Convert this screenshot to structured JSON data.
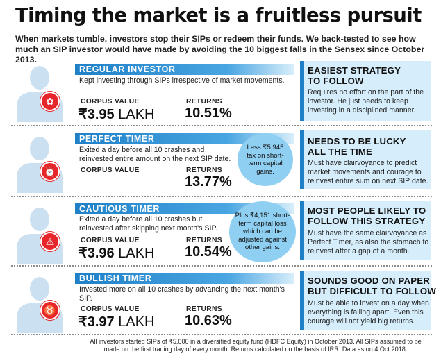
{
  "headline": "Timing the market is a fruitless pursuit",
  "intro": "When markets tumble, investors stop their SIPs or redeem their funds. We back-tested to see how much an SIP investor would have made by avoiding the 10 biggest falls in the Sensex since October 2013.",
  "labels": {
    "corpus": "CORPUS VALUE",
    "returns": "RETURNS"
  },
  "colors": {
    "accent": "#1f80c8",
    "badge": "#e6262a",
    "panel": "#d6edfb",
    "bubble": "#8fcff2"
  },
  "investors": [
    {
      "title": "REGULAR INVESTOR",
      "description": "Kept investing through SIPs irrespective of market movements.",
      "corpus_symbol": "₹",
      "corpus_amount": "3.95",
      "corpus_unit": "LAKH",
      "returns": "10.51%",
      "icon": "rose-icon",
      "panel_title": "EASIEST STRATEGY\nTO FOLLOW",
      "panel_text": "Requires no effort on the part of the investor. He just needs to keep investing in a disciplined manner."
    },
    {
      "title": "PERFECT TIMER",
      "description": "Exited a day before all 10 crashes and reinvested entire amount on the next SIP date.",
      "returns": "13.77%",
      "bubble": "Less ₹5,945 tax on short-term capital gains.",
      "icon": "alarm-clock-icon",
      "panel_title": "NEEDS TO BE LUCKY\nALL THE TIME",
      "panel_text": "Must have clairvoyance to predict market movements and courage to reinvest entire sum on next SIP date."
    },
    {
      "title": "CAUTIOUS TIMER",
      "description": "Exited a day before all 10 crashes but reinvested after skipping next month's SIP.",
      "corpus_symbol": "₹",
      "corpus_amount": "3.96",
      "corpus_unit": "LAKH",
      "returns": "10.54%",
      "bubble": "Plus ₹4,151 short-term capital loss which can be adjusted against other gains.",
      "icon": "warning-icon",
      "panel_title": "MOST PEOPLE LIKELY TO\nFOLLOW THIS STRATEGY",
      "panel_text": "Must have the same clairvoyance as Perfect Timer, as also the stomach to reinvest after a gap of a month."
    },
    {
      "title": "BULLISH TIMER",
      "description": "Invested more on all 10 crashes by advancing the next month's SIP.",
      "corpus_symbol": "₹",
      "corpus_amount": "3.97",
      "corpus_unit": "LAKH",
      "returns": "10.63%",
      "icon": "bull-icon",
      "panel_title": "SOUNDS GOOD ON PAPER\nBUT DIFFICULT TO FOLLOW",
      "panel_text": "Must be able to invest on a day when everything is falling apart. Even this courage will not yield big returns."
    }
  ],
  "footnote": "All investors started SIPs of ₹5,000 in a diversified equity fund (HDFC Equity) in October 2013. All SIPs assumed to be made on the first trading day of every month. Returns calculated on the basis of IRR. Data as on 4 Oct 2018."
}
